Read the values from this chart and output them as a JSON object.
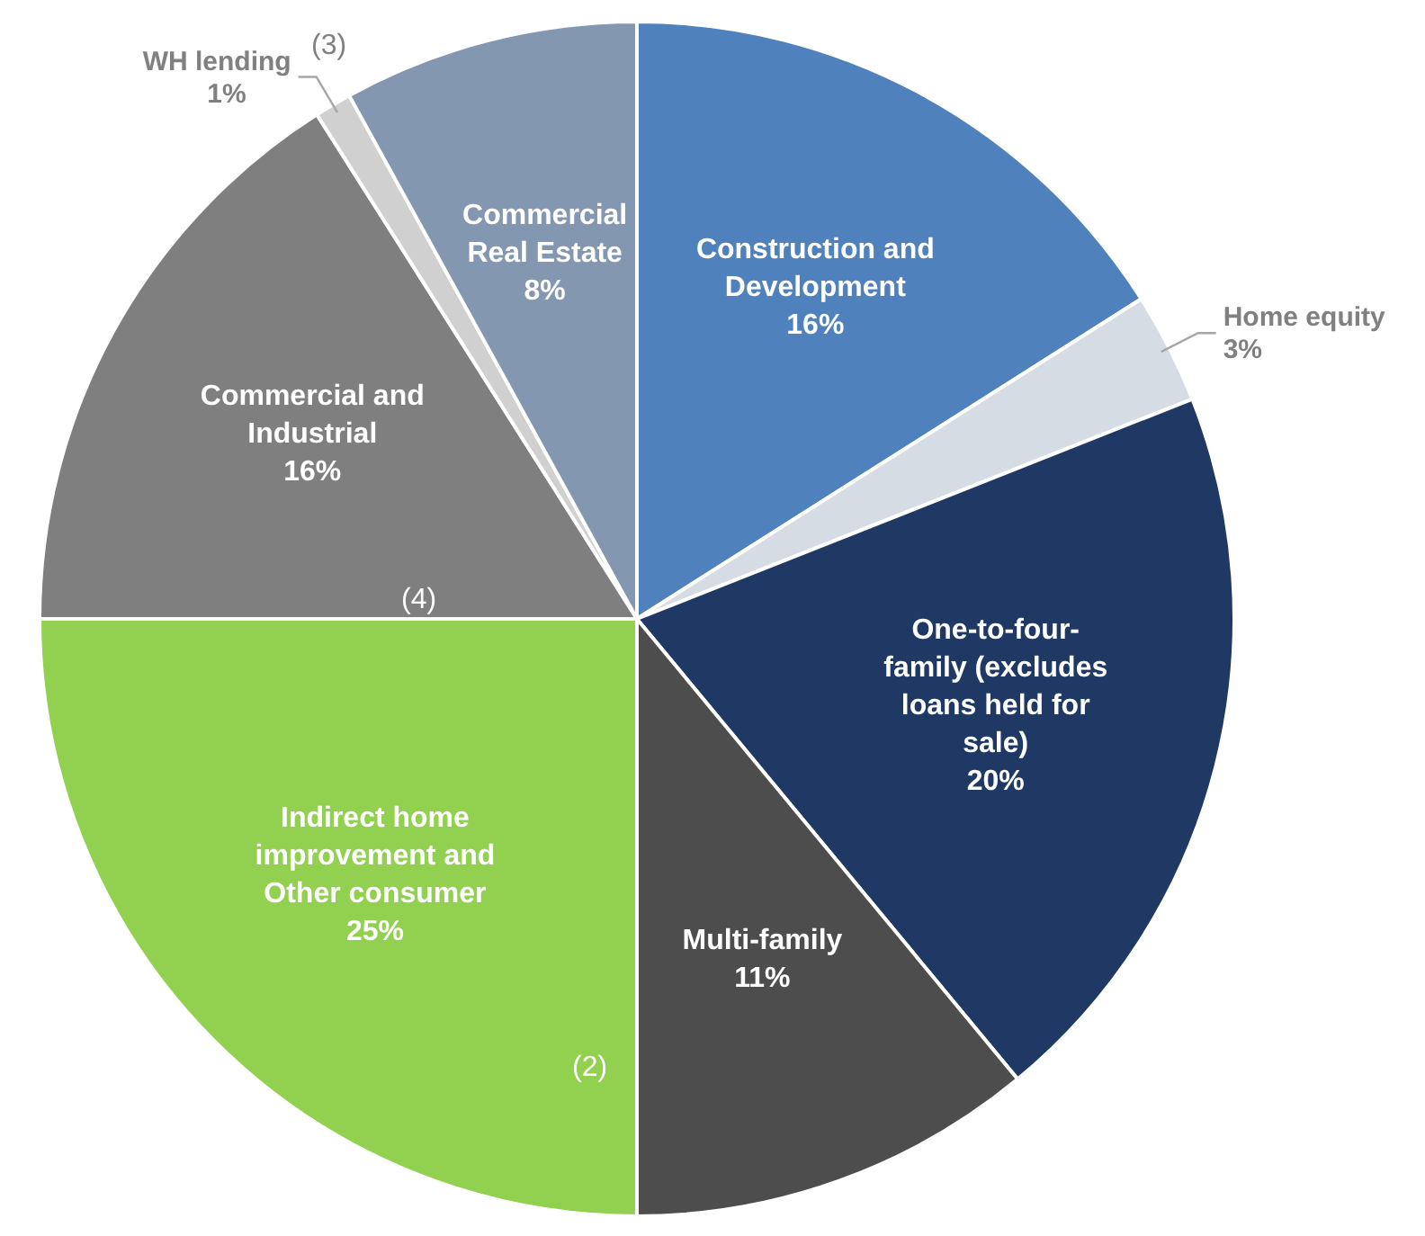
{
  "chart_data": {
    "type": "pie",
    "categories": [
      "Construction and Development",
      "Home equity",
      "One-to-four-family (excludes loans held for sale)",
      "Multi-family",
      "Indirect home improvement and Other consumer",
      "Commercial and Industrial",
      "WH lending",
      "Commercial Real Estate"
    ],
    "values": [
      16,
      3,
      20,
      11,
      25,
      16,
      1,
      8
    ],
    "value_labels": [
      "16%",
      "3%",
      "20%",
      "11%",
      "25%",
      "16%",
      "1%",
      "8%"
    ],
    "colors": [
      "#4f81bd",
      "#d6dce4",
      "#1f3864",
      "#4d4d4d",
      "#92d050",
      "#7f7f7f",
      "#d0d0d0",
      "#8497b0"
    ],
    "annotations": [
      "(2)",
      "(3)",
      "(4)"
    ]
  }
}
